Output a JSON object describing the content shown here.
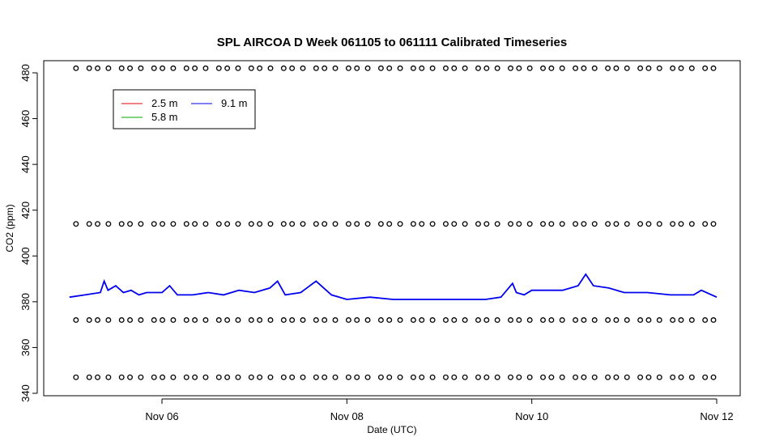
{
  "chart_data": {
    "type": "line",
    "title": "SPL AIRCOA D  Week 061105 to 061111  Calibrated Timeseries",
    "xlabel": "Date (UTC)",
    "ylabel": "CO2 (ppm)",
    "xlim": [
      "2006-11-05",
      "2006-11-12"
    ],
    "ylim": [
      340,
      485
    ],
    "x_ticks": [
      {
        "date": "2006-11-06",
        "label": "Nov 06"
      },
      {
        "date": "2006-11-08",
        "label": "Nov 08"
      },
      {
        "date": "2006-11-10",
        "label": "Nov 10"
      },
      {
        "date": "2006-11-12",
        "label": "Nov 12"
      }
    ],
    "y_ticks": [
      340,
      360,
      380,
      400,
      420,
      440,
      460,
      480
    ],
    "legend": {
      "position": "top-left",
      "entries": [
        {
          "label": "2.5 m",
          "color": "#dd0000"
        },
        {
          "label": "5.8 m",
          "color": "#00aa00"
        },
        {
          "label": "9.1 m",
          "color": "#0000ee"
        }
      ]
    },
    "series": [
      {
        "name": "9.1 m",
        "color": "#0000ee",
        "x": [
          "2006-11-05 00:00",
          "2006-11-05 04:00",
          "2006-11-05 08:00",
          "2006-11-05 09:00",
          "2006-11-05 10:00",
          "2006-11-05 12:00",
          "2006-11-05 14:00",
          "2006-11-05 16:00",
          "2006-11-05 18:00",
          "2006-11-05 20:00",
          "2006-11-06 00:00",
          "2006-11-06 02:00",
          "2006-11-06 04:00",
          "2006-11-06 08:00",
          "2006-11-06 12:00",
          "2006-11-06 16:00",
          "2006-11-06 20:00",
          "2006-11-07 00:00",
          "2006-11-07 04:00",
          "2006-11-07 06:00",
          "2006-11-07 08:00",
          "2006-11-07 12:00",
          "2006-11-07 16:00",
          "2006-11-07 20:00",
          "2006-11-08 00:00",
          "2006-11-08 06:00",
          "2006-11-08 12:00",
          "2006-11-08 18:00",
          "2006-11-09 00:00",
          "2006-11-09 06:00",
          "2006-11-09 12:00",
          "2006-11-09 16:00",
          "2006-11-09 19:00",
          "2006-11-09 20:00",
          "2006-11-09 22:00",
          "2006-11-10 00:00",
          "2006-11-10 04:00",
          "2006-11-10 08:00",
          "2006-11-10 12:00",
          "2006-11-10 14:00",
          "2006-11-10 16:00",
          "2006-11-10 20:00",
          "2006-11-11 00:00",
          "2006-11-11 06:00",
          "2006-11-11 12:00",
          "2006-11-11 18:00",
          "2006-11-11 20:00",
          "2006-11-12 00:00"
        ],
        "y": [
          382,
          383,
          384,
          389,
          385,
          387,
          384,
          385,
          383,
          384,
          384,
          387,
          383,
          383,
          384,
          383,
          385,
          384,
          386,
          389,
          383,
          384,
          389,
          383,
          381,
          382,
          381,
          381,
          381,
          381,
          381,
          382,
          388,
          384,
          383,
          385,
          385,
          385,
          387,
          392,
          387,
          386,
          384,
          384,
          383,
          383,
          385,
          382
        ]
      }
    ],
    "calibration_markers": {
      "symbol": "open circle",
      "levels": [
        482,
        414,
        372,
        347
      ],
      "count_per_level": 60
    }
  }
}
